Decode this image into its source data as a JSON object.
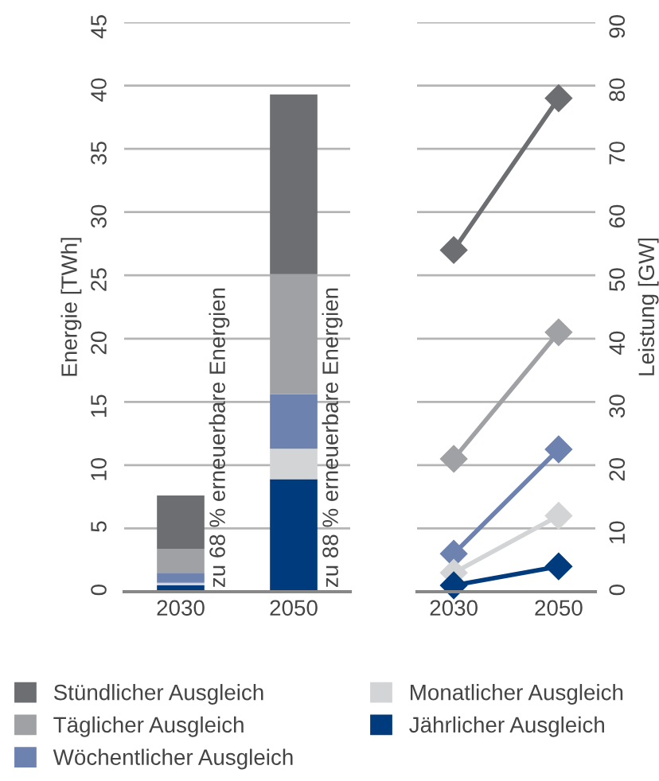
{
  "chart_data": [
    {
      "type": "bar",
      "stacked": true,
      "categories": [
        "2030",
        "2050"
      ],
      "ylabel": "Energie [TWh]",
      "ylim": [
        0,
        45
      ],
      "yticks": [
        0,
        5,
        10,
        15,
        20,
        25,
        30,
        35,
        40,
        45
      ],
      "grid": "y",
      "legend": "bottom",
      "series": [
        {
          "name": "Jährlicher Ausgleich",
          "color": "#003c7d",
          "values": [
            0.5,
            8.9
          ]
        },
        {
          "name": "Monatlicher Ausgleich",
          "color": "#d3d4d6",
          "values": [
            0.2,
            2.4
          ]
        },
        {
          "name": "Wöchentlicher Ausgleich",
          "color": "#6e82b0",
          "values": [
            0.8,
            4.3
          ]
        },
        {
          "name": "Täglicher Ausgleich",
          "color": "#a0a1a4",
          "values": [
            1.9,
            9.5
          ]
        },
        {
          "name": "Stündlicher Ausgleich",
          "color": "#6d6e71",
          "values": [
            4.2,
            14.2
          ]
        }
      ],
      "annotations": [
        {
          "text": "zu 68 % erneuerbare Energien",
          "x": "2030",
          "y": 0
        },
        {
          "text": "zu 88 % erneuerbare Energien",
          "x": "2050",
          "y": 0
        }
      ]
    },
    {
      "type": "line",
      "categories": [
        "2030",
        "2050"
      ],
      "y2label": "Leistung [GW]",
      "y2lim": [
        0,
        90
      ],
      "y2ticks": [
        0,
        10,
        20,
        30,
        40,
        50,
        60,
        70,
        80,
        90
      ],
      "grid": "y",
      "marker": "diamond",
      "line_style": "solid",
      "series": [
        {
          "axis": "y2",
          "color": "#6d6e71",
          "values": [
            54,
            78
          ]
        },
        {
          "axis": "y2",
          "color": "#a0a1a4",
          "values": [
            21,
            41
          ]
        },
        {
          "axis": "y2",
          "color": "#6e82b0",
          "values": [
            6,
            22.5
          ]
        },
        {
          "axis": "y2",
          "color": "#d3d4d6",
          "values": [
            3,
            12
          ]
        },
        {
          "axis": "y2",
          "color": "#003c7d",
          "values": [
            1,
            4
          ]
        }
      ]
    }
  ]
}
